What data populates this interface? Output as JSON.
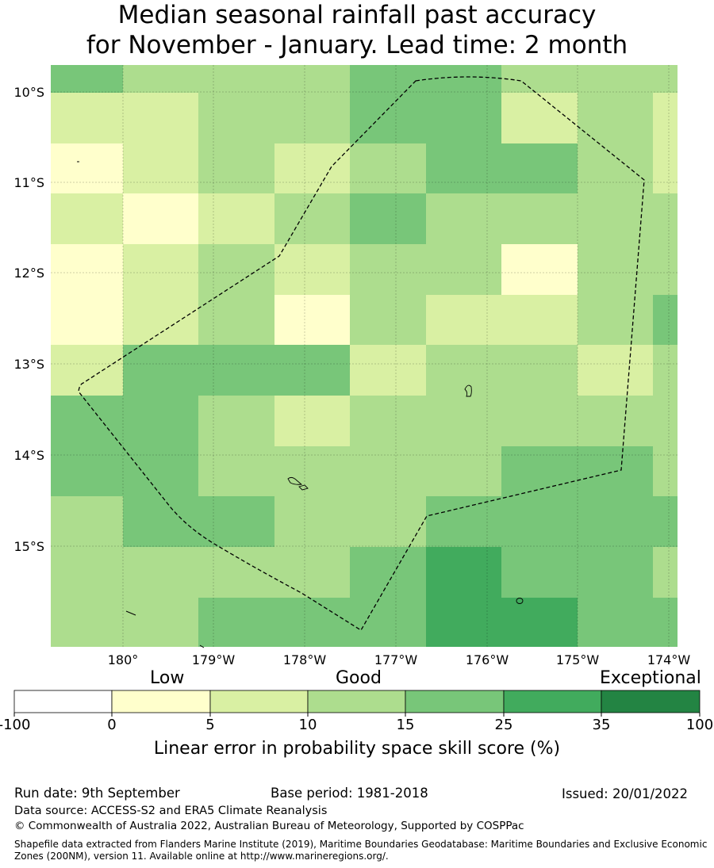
{
  "title": {
    "line1": "Median seasonal rainfall past accuracy",
    "line2": "for November - January. Lead time: 2 month"
  },
  "map": {
    "lat_labels": [
      "10°S",
      "11°S",
      "12°S",
      "13°S",
      "14°S",
      "15°S"
    ],
    "lon_labels": [
      "180°",
      "179°W",
      "178°W",
      "177°W",
      "176°W",
      "175°W",
      "174°W"
    ],
    "grid_level_rows": [
      [
        3,
        2,
        2,
        2,
        3,
        3,
        2,
        2,
        2
      ],
      [
        1,
        1,
        2,
        2,
        3,
        3,
        1,
        2,
        1
      ],
      [
        0,
        1,
        2,
        1,
        2,
        3,
        3,
        2,
        1
      ],
      [
        1,
        0,
        1,
        2,
        3,
        2,
        2,
        2,
        2
      ],
      [
        0,
        1,
        2,
        1,
        2,
        2,
        0,
        2,
        2
      ],
      [
        0,
        1,
        2,
        0,
        2,
        1,
        1,
        2,
        3
      ],
      [
        1,
        3,
        3,
        3,
        1,
        2,
        2,
        1,
        2
      ],
      [
        3,
        3,
        2,
        1,
        2,
        2,
        2,
        2,
        2
      ],
      [
        3,
        3,
        2,
        2,
        2,
        2,
        3,
        3,
        2
      ],
      [
        2,
        3,
        3,
        2,
        2,
        3,
        3,
        3,
        3
      ],
      [
        2,
        2,
        2,
        2,
        3,
        4,
        3,
        3,
        2
      ],
      [
        2,
        2,
        3,
        3,
        3,
        4,
        4,
        3,
        3
      ]
    ]
  },
  "legend": {
    "category_labels": [
      "Low",
      "Good",
      "Exceptional"
    ],
    "ticks": [
      "-100",
      "0",
      "5",
      "10",
      "15",
      "25",
      "35",
      "100"
    ],
    "colors": [
      "#ffffff",
      "#ffffcc",
      "#d9f0a3",
      "#addd8e",
      "#78c679",
      "#41ab5d",
      "#238443"
    ],
    "caption": "Linear error in probability space skill score (%)"
  },
  "footer": {
    "run_date": "Run date: 9th September",
    "base_period": "Base period: 1981-2018",
    "issued": "Issued: 20/01/2022",
    "data_source": "Data source: ACCESS-S2 and ERA5 Climate Reanalysis",
    "copyright": "© Commonwealth of Australia 2022, Australian Bureau of Meteorology, Supported by COSPPac",
    "shapefile": "Shapefile data extracted from Flanders Marine Institute (2019), Maritime Boundaries Geodatabase: Maritime Boundaries and Exclusive Economic Zones (200NM), version 11. Available online at http://www.marineregions.org/."
  }
}
